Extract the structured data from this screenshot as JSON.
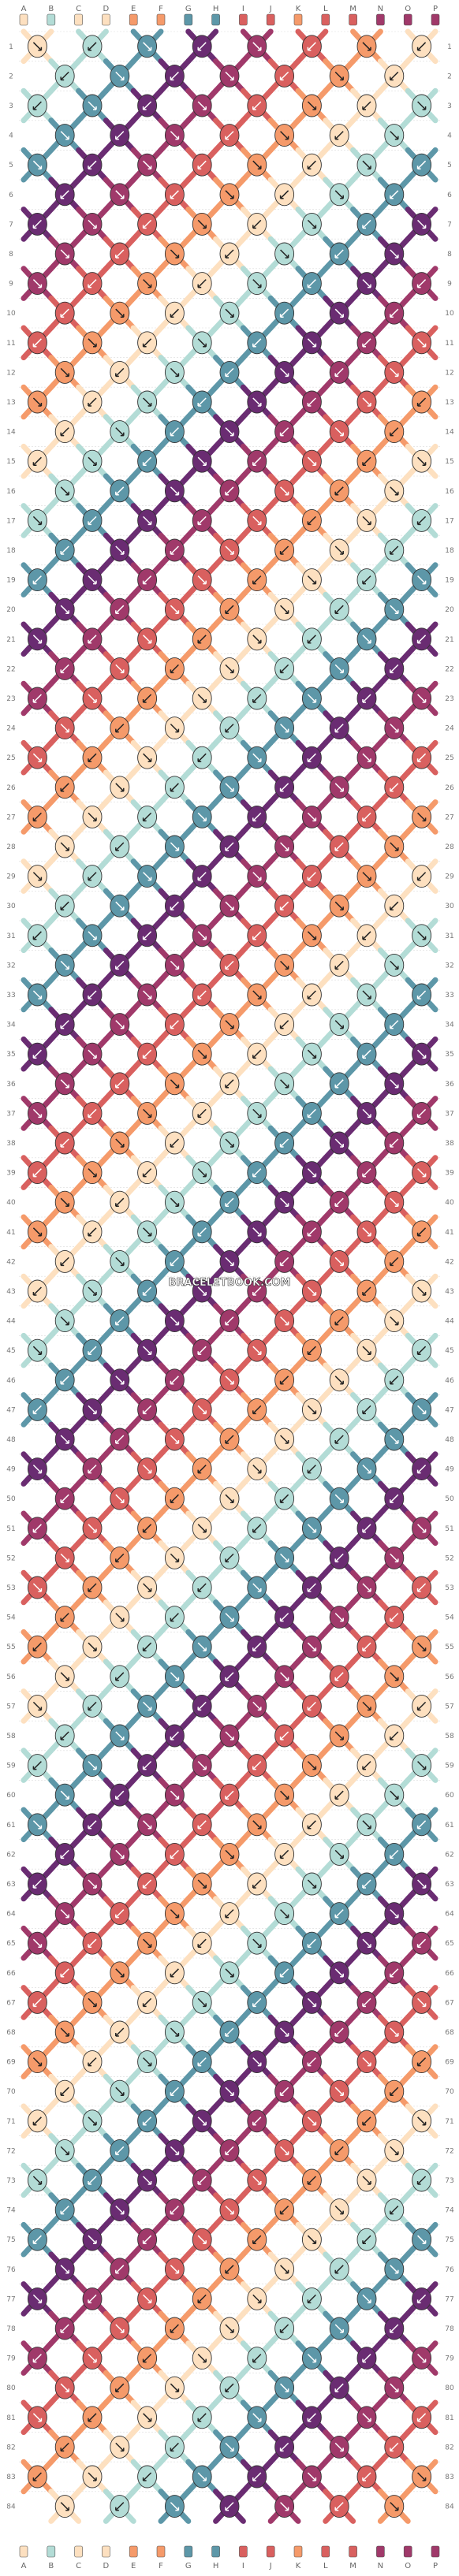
{
  "pattern": {
    "columns": [
      "A",
      "B",
      "C",
      "D",
      "E",
      "F",
      "G",
      "H",
      "I",
      "J",
      "K",
      "L",
      "M",
      "N",
      "O",
      "P"
    ],
    "row_count": 84,
    "row_numbers_left": [
      "1",
      "2",
      "3",
      "4",
      "5",
      "6",
      "7",
      "8",
      "9",
      "10",
      "11",
      "12",
      "13",
      "14",
      "15",
      "16",
      "17",
      "18",
      "19",
      "20",
      "21",
      "22",
      "23",
      "24",
      "25",
      "26",
      "27",
      "28",
      "29",
      "30",
      "31",
      "32",
      "33",
      "34",
      "35",
      "36",
      "37",
      "38",
      "39",
      "40",
      "41",
      "42",
      "43",
      "44",
      "45",
      "46",
      "47",
      "48",
      "49",
      "50",
      "51",
      "52",
      "53",
      "54",
      "55",
      "56",
      "57",
      "58",
      "59",
      "60",
      "61",
      "62",
      "63",
      "64",
      "65",
      "66",
      "67",
      "68",
      "69",
      "70",
      "71",
      "72",
      "73",
      "74",
      "75",
      "76",
      "77",
      "78",
      "79",
      "80",
      "81",
      "82",
      "83",
      "84"
    ],
    "row_numbers_right": [
      "1",
      "2",
      "3",
      "4",
      "5",
      "6",
      "7",
      "8",
      "9",
      "10",
      "11",
      "12",
      "13",
      "14",
      "15",
      "16",
      "17",
      "18",
      "19",
      "20",
      "21",
      "22",
      "23",
      "24",
      "25",
      "26",
      "27",
      "28",
      "29",
      "30",
      "31",
      "32",
      "33",
      "34",
      "35",
      "36",
      "37",
      "38",
      "39",
      "40",
      "41",
      "42",
      "43",
      "44",
      "45",
      "46",
      "47",
      "48",
      "49",
      "50",
      "51",
      "52",
      "53",
      "54",
      "55",
      "56",
      "57",
      "58",
      "59",
      "60",
      "61",
      "62",
      "63",
      "64",
      "65",
      "66",
      "67",
      "68",
      "69",
      "70",
      "71",
      "72",
      "73",
      "74",
      "75",
      "76",
      "77",
      "78",
      "79",
      "80",
      "81",
      "82",
      "83",
      "84"
    ],
    "watermark": "BRACELETBOOK.COM",
    "strand_colors": [
      "#fde0c0",
      "#b3dcd6",
      "#fde0c0",
      "#fde0c0",
      "#f59a6a",
      "#f59a6a",
      "#5d97a8",
      "#5d97a8",
      "#d9605f",
      "#d9605f",
      "#f59a6a",
      "#d9605f",
      "#d9605f",
      "#a0396a",
      "#a0396a",
      "#a0396a"
    ],
    "palette": {
      "peach": "#fde0c0",
      "mint": "#b3dcd6",
      "orange": "#f59a6a",
      "teal": "#5d97a8",
      "coral": "#d9605f",
      "magenta": "#a0396a",
      "purple": "#6a2c72"
    },
    "band_colors": [
      "#fde0c0",
      "#b3dcd6",
      "#5d97a8",
      "#6a2c72",
      "#a0396a",
      "#d9605f",
      "#f59a6a",
      "#fde0c0",
      "#b3dcd6",
      "#5d97a8",
      "#6a2c72",
      "#a0396a",
      "#d9605f",
      "#f59a6a"
    ]
  }
}
